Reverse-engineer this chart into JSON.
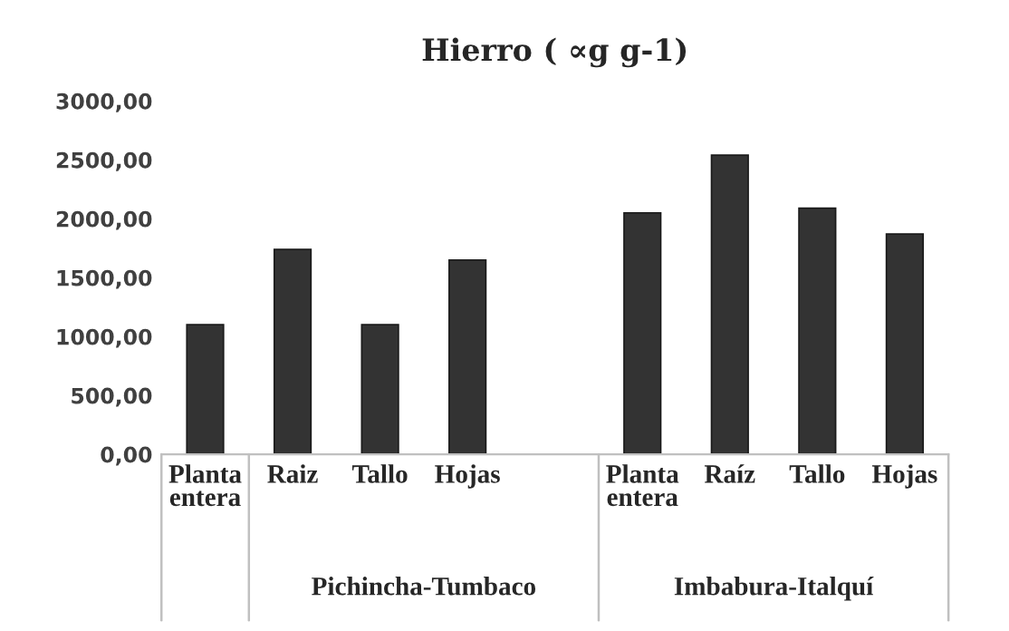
{
  "chart_data": {
    "type": "bar",
    "title": "Hierro ( ∝g g-1)",
    "categories": [
      "Planta\nentera",
      "Raiz",
      "Tallo",
      "Hojas",
      null,
      "Planta\nentera",
      "Raíz",
      "Tallo",
      "Hojas"
    ],
    "values": [
      1100,
      1740,
      1100,
      1650,
      null,
      2050,
      2540,
      2090,
      1870
    ],
    "color": "#333333",
    "ylim": [
      0,
      3000
    ],
    "yticks": [
      {
        "value": 0,
        "label": "0,00"
      },
      {
        "value": 500,
        "label": "500,00"
      },
      {
        "value": 1000,
        "label": "1000,00"
      },
      {
        "value": 1500,
        "label": "1500,00"
      },
      {
        "value": 2000,
        "label": "2000,00"
      },
      {
        "value": 2500,
        "label": "2500,00"
      },
      {
        "value": 3000,
        "label": "3000,00"
      }
    ],
    "annotations": [
      "Pichincha-Tumbaco",
      "Imbabura-Italquí"
    ],
    "grid": false,
    "legend": false
  }
}
